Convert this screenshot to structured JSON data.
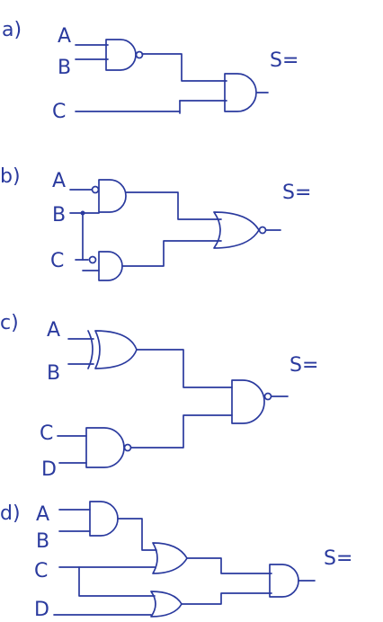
{
  "ink_color": "#2a3a9e",
  "paper_color": "#ffffff",
  "output_label": "S=",
  "exercises": [
    {
      "label": "a)",
      "inputs": [
        "A",
        "B",
        "C"
      ],
      "gates": [
        {
          "id": "g1",
          "type": "nand",
          "inputs": [
            "A",
            "B"
          ]
        },
        {
          "id": "g2",
          "type": "and",
          "inputs": [
            "g1",
            "C"
          ]
        }
      ]
    },
    {
      "label": "b)",
      "inputs": [
        "A",
        "B",
        "C"
      ],
      "gates": [
        {
          "id": "g1",
          "type": "and",
          "inputs": [
            "NOT A",
            "B"
          ]
        },
        {
          "id": "g2",
          "type": "and",
          "inputs": [
            "B",
            "NOT C"
          ]
        },
        {
          "id": "g3",
          "type": "nor",
          "inputs": [
            "g1",
            "g2"
          ]
        }
      ]
    },
    {
      "label": "c)",
      "inputs": [
        "A",
        "B",
        "C",
        "D"
      ],
      "gates": [
        {
          "id": "g1",
          "type": "xor",
          "inputs": [
            "A",
            "B"
          ]
        },
        {
          "id": "g2",
          "type": "nand",
          "inputs": [
            "C",
            "D"
          ]
        },
        {
          "id": "g3",
          "type": "nand",
          "inputs": [
            "g1",
            "g2"
          ]
        }
      ]
    },
    {
      "label": "d)",
      "inputs": [
        "A",
        "B",
        "C",
        "D"
      ],
      "gates": [
        {
          "id": "g1",
          "type": "and",
          "inputs": [
            "A",
            "B"
          ]
        },
        {
          "id": "g2",
          "type": "or",
          "inputs": [
            "g1",
            "C"
          ]
        },
        {
          "id": "g3",
          "type": "or",
          "inputs": [
            "C",
            "D"
          ]
        },
        {
          "id": "g4",
          "type": "and",
          "inputs": [
            "g2",
            "g3"
          ]
        }
      ]
    }
  ]
}
